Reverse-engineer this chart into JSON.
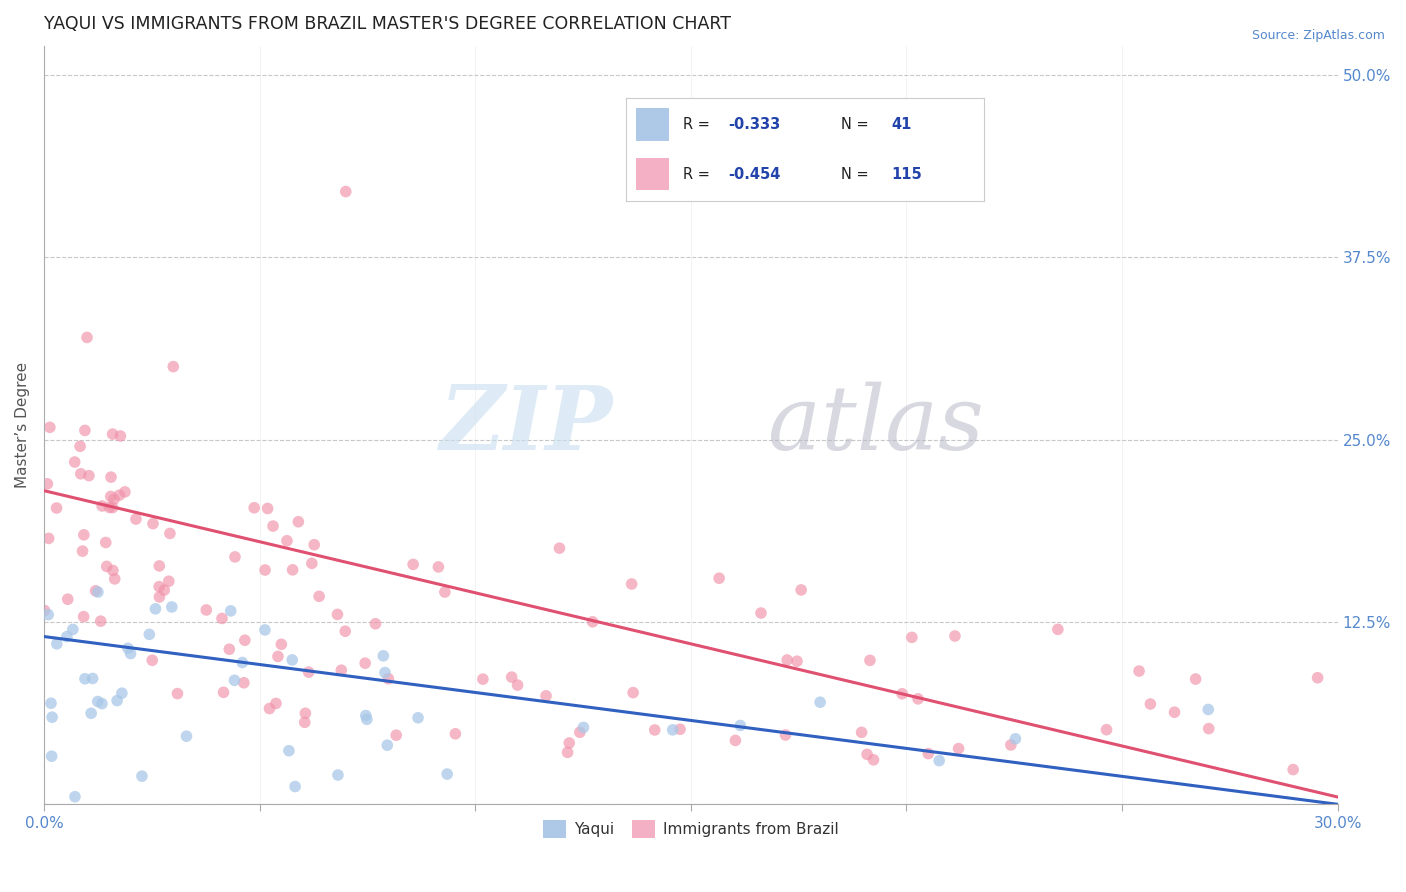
{
  "title": "YAQUI VS IMMIGRANTS FROM BRAZIL MASTER'S DEGREE CORRELATION CHART",
  "source_text": "Source: ZipAtlas.com",
  "ylabel": "Master’s Degree",
  "y_ticks": [
    0.0,
    0.125,
    0.25,
    0.375,
    0.5
  ],
  "y_tick_labels": [
    "",
    "12.5%",
    "25.0%",
    "37.5%",
    "50.0%"
  ],
  "x_ticks": [
    0.0,
    0.05,
    0.1,
    0.15,
    0.2,
    0.25,
    0.3
  ],
  "xlim": [
    0.0,
    0.3
  ],
  "ylim": [
    0.0,
    0.52
  ],
  "series_yaqui": {
    "R": -0.333,
    "N": 41,
    "dot_color": "#a8c8e8",
    "trend_color": "#3060c0",
    "alpha": 0.75
  },
  "series_brazil": {
    "R": -0.454,
    "N": 115,
    "dot_color": "#f090a8",
    "trend_color": "#e05070",
    "alpha": 0.65
  },
  "background_color": "#ffffff",
  "grid_color": "#c8c8c8",
  "title_color": "#222222",
  "title_fontsize": 12.5,
  "legend_color_yaqui": "#aec8e8",
  "legend_color_brazil": "#f4b0c4",
  "legend_R_color": "#2244aa",
  "legend_N_color": "#2244aa",
  "source_color": "#5588cc",
  "axis_label_color": "#5588cc",
  "ylabel_color": "#555555",
  "yaqui_trend_start_y": 0.115,
  "yaqui_trend_end_y": 0.0,
  "brazil_trend_start_y": 0.215,
  "brazil_trend_end_y": 0.005
}
